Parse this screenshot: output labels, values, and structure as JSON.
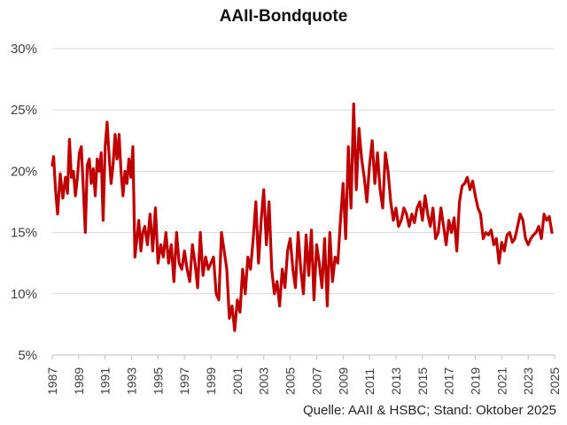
{
  "chart": {
    "title": "AAII-Bondquote",
    "source": "Quelle: AAII & HSBC; Stand: Oktober 2025",
    "line_color": "#C00000",
    "grid_color": "#D9D9D9"
  },
  "chart_data": {
    "type": "line",
    "title": "AAII-Bondquote",
    "xlabel": "",
    "ylabel": "",
    "ylim": [
      5,
      30
    ],
    "xlim": [
      1987,
      2025
    ],
    "grid": true,
    "legend": "none",
    "y_ticks": [
      "5%",
      "10%",
      "15%",
      "20%",
      "25%",
      "30%"
    ],
    "x_ticks": [
      "1987",
      "1989",
      "1991",
      "1993",
      "1995",
      "1997",
      "1999",
      "2001",
      "2003",
      "2005",
      "2007",
      "2009",
      "2011",
      "2013",
      "2015",
      "2017",
      "2019",
      "2021",
      "2023",
      "2025"
    ],
    "annotation": "Quelle: AAII & HSBC; Stand: Oktober 2025",
    "series": [
      {
        "name": "AAII-Bondquote",
        "unit": "%",
        "x": [
          1987.0,
          1987.1,
          1987.25,
          1987.4,
          1987.6,
          1987.8,
          1988.0,
          1988.15,
          1988.3,
          1988.45,
          1988.6,
          1988.75,
          1988.9,
          1989.05,
          1989.2,
          1989.35,
          1989.5,
          1989.65,
          1989.8,
          1989.95,
          1990.1,
          1990.25,
          1990.4,
          1990.55,
          1990.7,
          1990.85,
          1991.0,
          1991.15,
          1991.3,
          1991.45,
          1991.6,
          1991.75,
          1991.9,
          1992.05,
          1992.2,
          1992.35,
          1992.5,
          1992.65,
          1992.8,
          1992.95,
          1993.1,
          1993.25,
          1993.4,
          1993.55,
          1993.7,
          1993.85,
          1994.0,
          1994.2,
          1994.4,
          1994.6,
          1994.8,
          1995.0,
          1995.2,
          1995.4,
          1995.6,
          1995.8,
          1996.0,
          1996.2,
          1996.4,
          1996.6,
          1996.8,
          1997.0,
          1997.2,
          1997.4,
          1997.6,
          1997.8,
          1998.0,
          1998.2,
          1998.4,
          1998.6,
          1998.8,
          1999.0,
          1999.2,
          1999.4,
          1999.6,
          1999.8,
          2000.0,
          2000.2,
          2000.4,
          2000.6,
          2000.8,
          2001.0,
          2001.2,
          2001.4,
          2001.6,
          2001.8,
          2002.0,
          2002.2,
          2002.4,
          2002.6,
          2002.8,
          2003.0,
          2003.2,
          2003.4,
          2003.6,
          2003.8,
          2004.0,
          2004.2,
          2004.4,
          2004.6,
          2004.8,
          2005.0,
          2005.2,
          2005.4,
          2005.6,
          2005.8,
          2006.0,
          2006.2,
          2006.4,
          2006.6,
          2006.8,
          2007.0,
          2007.2,
          2007.4,
          2007.6,
          2007.8,
          2008.0,
          2008.2,
          2008.4,
          2008.6,
          2008.8,
          2009.0,
          2009.2,
          2009.4,
          2009.6,
          2009.8,
          2010.0,
          2010.2,
          2010.4,
          2010.6,
          2010.8,
          2011.0,
          2011.2,
          2011.4,
          2011.6,
          2011.8,
          2012.0,
          2012.2,
          2012.4,
          2012.6,
          2012.8,
          2013.0,
          2013.2,
          2013.4,
          2013.6,
          2013.8,
          2014.0,
          2014.2,
          2014.4,
          2014.6,
          2014.8,
          2015.0,
          2015.2,
          2015.4,
          2015.6,
          2015.8,
          2016.0,
          2016.2,
          2016.4,
          2016.6,
          2016.8,
          2017.0,
          2017.2,
          2017.4,
          2017.6,
          2017.8,
          2018.0,
          2018.2,
          2018.4,
          2018.6,
          2018.8,
          2019.0,
          2019.2,
          2019.4,
          2019.6,
          2019.8,
          2020.0,
          2020.2,
          2020.4,
          2020.6,
          2020.8,
          2021.0,
          2021.2,
          2021.4,
          2021.6,
          2021.8,
          2022.0,
          2022.2,
          2022.4,
          2022.6,
          2022.8,
          2023.0,
          2023.2,
          2023.4,
          2023.6,
          2023.8,
          2024.0,
          2024.2,
          2024.4,
          2024.6,
          2024.8
        ],
        "values": [
          20.5,
          21.2,
          18.5,
          16.5,
          19.8,
          17.8,
          19.5,
          18.2,
          22.6,
          19.5,
          20.0,
          18.0,
          19.5,
          21.5,
          22.0,
          18.5,
          15.0,
          20.5,
          21.0,
          19.0,
          20.2,
          18.0,
          21.0,
          20.0,
          21.5,
          16.0,
          22.0,
          24.0,
          21.2,
          19.0,
          20.5,
          23.0,
          21.0,
          23.0,
          20.0,
          18.0,
          20.0,
          19.0,
          21.0,
          19.5,
          22.0,
          13.0,
          14.5,
          16.0,
          13.5,
          15.0,
          15.5,
          14.0,
          16.5,
          13.5,
          17.0,
          12.5,
          14.0,
          13.0,
          15.0,
          12.5,
          14.0,
          11.0,
          15.0,
          12.5,
          12.0,
          13.5,
          12.0,
          11.0,
          14.0,
          12.5,
          10.5,
          15.0,
          11.5,
          13.0,
          12.0,
          12.5,
          13.0,
          10.0,
          9.5,
          15.0,
          13.5,
          12.0,
          8.0,
          9.0,
          7.0,
          9.5,
          8.5,
          12.0,
          10.0,
          13.0,
          12.0,
          14.5,
          17.5,
          12.5,
          16.0,
          18.5,
          14.0,
          17.5,
          12.0,
          10.0,
          11.0,
          9.0,
          12.0,
          10.5,
          13.5,
          14.5,
          12.0,
          10.5,
          15.0,
          12.0,
          10.0,
          14.8,
          11.5,
          15.2,
          9.5,
          14.0,
          12.5,
          10.5,
          14.5,
          9.0,
          15.0,
          11.0,
          13.0,
          12.5,
          16.0,
          19.0,
          14.5,
          22.0,
          17.0,
          25.5,
          18.5,
          23.5,
          21.0,
          19.5,
          17.5,
          20.5,
          22.5,
          19.0,
          21.5,
          18.5,
          17.0,
          21.5,
          20.0,
          17.5,
          16.0,
          17.0,
          15.5,
          16.0,
          17.0,
          16.5,
          15.5,
          16.5,
          15.8,
          17.0,
          17.5,
          16.0,
          18.0,
          16.5,
          15.5,
          17.0,
          14.5,
          15.0,
          17.0,
          15.5,
          14.0,
          16.0,
          15.0,
          16.2,
          13.5,
          17.5,
          18.8,
          19.0,
          19.5,
          18.5,
          19.2,
          18.0,
          17.0,
          16.5,
          14.5,
          15.0,
          14.8,
          15.2,
          14.0,
          14.5,
          12.5,
          14.2,
          13.5,
          14.8,
          15.0,
          14.2,
          14.5,
          15.5,
          16.5,
          16.0,
          14.5,
          14.0,
          14.5,
          14.8,
          15.0,
          15.5,
          14.5,
          16.5,
          16.0,
          16.3,
          15.0
        ]
      }
    ]
  }
}
